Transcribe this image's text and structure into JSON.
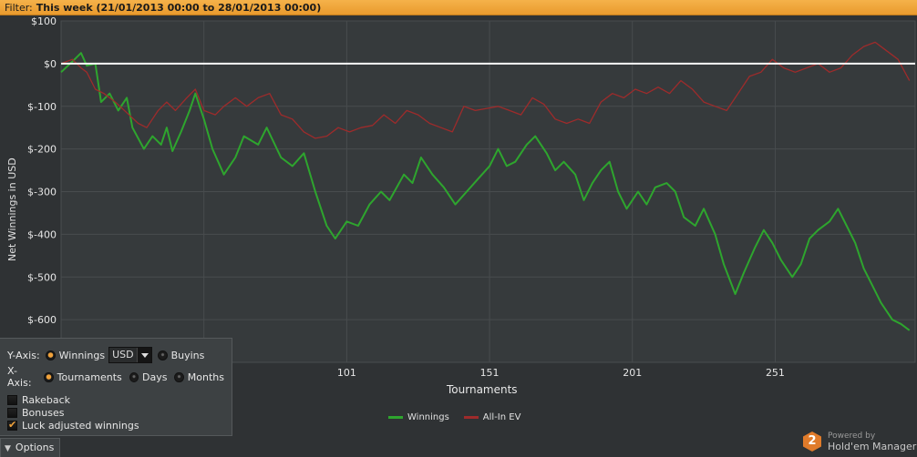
{
  "filter": {
    "label": "Filter:",
    "value": "This week (21/01/2013 00:00 to 28/01/2013 00:00)"
  },
  "colors": {
    "winnings": "#2ea52e",
    "allin_ev": "#9e2b2b",
    "accent": "#f0a23b",
    "zero_line": "#ffffff"
  },
  "options_panel": {
    "y_axis_label": "Y-Axis:",
    "y_winnings": "Winnings",
    "currency": "USD",
    "y_buyins": "Buyins",
    "x_axis_label": "X-Axis:",
    "x_tournaments": "Tournaments",
    "x_days": "Days",
    "x_months": "Months",
    "rakeback": "Rakeback",
    "bonuses": "Bonuses",
    "luck_adjusted": "Luck adjusted winnings",
    "rakeback_checked": false,
    "bonuses_checked": false,
    "luck_adjusted_checked": true
  },
  "options_tab": {
    "label": "Options",
    "icon": "chevron-down-icon"
  },
  "brand": {
    "powered_by": "Powered by",
    "name": "Hold'em Manager",
    "logo_text": "2"
  },
  "chart_data": {
    "type": "line",
    "xlabel": "Tournaments",
    "ylabel": "Net Winnings in USD",
    "xlim": [
      1,
      300
    ],
    "ylim": [
      -700,
      100
    ],
    "x_ticks": [
      "101",
      "151",
      "201",
      "251"
    ],
    "y_ticks": [
      "$100",
      "$0",
      "$-100",
      "$-200",
      "$-300",
      "$-400",
      "$-500",
      "$-600"
    ],
    "grid": true,
    "legend_position": "bottom-center",
    "series": [
      {
        "name": "Winnings",
        "key": "winnings",
        "points": [
          [
            1,
            -20
          ],
          [
            5,
            5
          ],
          [
            8,
            25
          ],
          [
            10,
            -5
          ],
          [
            13,
            0
          ],
          [
            15,
            -90
          ],
          [
            18,
            -70
          ],
          [
            21,
            -110
          ],
          [
            24,
            -80
          ],
          [
            26,
            -150
          ],
          [
            30,
            -200
          ],
          [
            33,
            -170
          ],
          [
            36,
            -190
          ],
          [
            38,
            -150
          ],
          [
            40,
            -205
          ],
          [
            43,
            -160
          ],
          [
            46,
            -110
          ],
          [
            48,
            -70
          ],
          [
            51,
            -130
          ],
          [
            54,
            -200
          ],
          [
            58,
            -260
          ],
          [
            62,
            -220
          ],
          [
            65,
            -170
          ],
          [
            70,
            -190
          ],
          [
            73,
            -150
          ],
          [
            78,
            -220
          ],
          [
            82,
            -240
          ],
          [
            86,
            -210
          ],
          [
            90,
            -300
          ],
          [
            94,
            -380
          ],
          [
            97,
            -410
          ],
          [
            101,
            -370
          ],
          [
            105,
            -380
          ],
          [
            109,
            -330
          ],
          [
            113,
            -300
          ],
          [
            116,
            -320
          ],
          [
            121,
            -260
          ],
          [
            124,
            -280
          ],
          [
            127,
            -220
          ],
          [
            131,
            -260
          ],
          [
            135,
            -290
          ],
          [
            139,
            -330
          ],
          [
            143,
            -300
          ],
          [
            147,
            -270
          ],
          [
            151,
            -240
          ],
          [
            154,
            -200
          ],
          [
            157,
            -240
          ],
          [
            160,
            -230
          ],
          [
            164,
            -190
          ],
          [
            167,
            -170
          ],
          [
            171,
            -210
          ],
          [
            174,
            -250
          ],
          [
            177,
            -230
          ],
          [
            181,
            -260
          ],
          [
            184,
            -320
          ],
          [
            187,
            -280
          ],
          [
            190,
            -250
          ],
          [
            193,
            -230
          ],
          [
            196,
            -300
          ],
          [
            199,
            -340
          ],
          [
            203,
            -300
          ],
          [
            206,
            -330
          ],
          [
            209,
            -290
          ],
          [
            213,
            -280
          ],
          [
            216,
            -300
          ],
          [
            219,
            -360
          ],
          [
            223,
            -380
          ],
          [
            226,
            -340
          ],
          [
            230,
            -400
          ],
          [
            233,
            -470
          ],
          [
            237,
            -540
          ],
          [
            240,
            -490
          ],
          [
            244,
            -430
          ],
          [
            247,
            -390
          ],
          [
            250,
            -420
          ],
          [
            253,
            -460
          ],
          [
            257,
            -500
          ],
          [
            260,
            -470
          ],
          [
            263,
            -410
          ],
          [
            266,
            -390
          ],
          [
            270,
            -370
          ],
          [
            273,
            -340
          ],
          [
            276,
            -380
          ],
          [
            279,
            -420
          ],
          [
            282,
            -480
          ],
          [
            285,
            -520
          ],
          [
            288,
            -560
          ],
          [
            292,
            -600
          ],
          [
            295,
            -610
          ],
          [
            298,
            -625
          ]
        ]
      },
      {
        "name": "All-In EV",
        "key": "allin_ev",
        "points": [
          [
            1,
            0
          ],
          [
            5,
            10
          ],
          [
            8,
            -10
          ],
          [
            10,
            -20
          ],
          [
            13,
            -60
          ],
          [
            16,
            -70
          ],
          [
            20,
            -90
          ],
          [
            24,
            -115
          ],
          [
            28,
            -140
          ],
          [
            31,
            -150
          ],
          [
            35,
            -110
          ],
          [
            38,
            -90
          ],
          [
            41,
            -110
          ],
          [
            45,
            -80
          ],
          [
            48,
            -60
          ],
          [
            51,
            -110
          ],
          [
            55,
            -120
          ],
          [
            58,
            -100
          ],
          [
            62,
            -80
          ],
          [
            66,
            -100
          ],
          [
            70,
            -80
          ],
          [
            74,
            -70
          ],
          [
            78,
            -120
          ],
          [
            82,
            -130
          ],
          [
            86,
            -160
          ],
          [
            90,
            -175
          ],
          [
            94,
            -170
          ],
          [
            98,
            -150
          ],
          [
            102,
            -160
          ],
          [
            106,
            -150
          ],
          [
            110,
            -145
          ],
          [
            114,
            -120
          ],
          [
            118,
            -140
          ],
          [
            122,
            -110
          ],
          [
            126,
            -120
          ],
          [
            130,
            -140
          ],
          [
            134,
            -150
          ],
          [
            138,
            -160
          ],
          [
            142,
            -100
          ],
          [
            146,
            -110
          ],
          [
            150,
            -105
          ],
          [
            154,
            -100
          ],
          [
            158,
            -110
          ],
          [
            162,
            -120
          ],
          [
            166,
            -80
          ],
          [
            170,
            -95
          ],
          [
            174,
            -130
          ],
          [
            178,
            -140
          ],
          [
            182,
            -130
          ],
          [
            186,
            -140
          ],
          [
            190,
            -90
          ],
          [
            194,
            -70
          ],
          [
            198,
            -80
          ],
          [
            202,
            -60
          ],
          [
            206,
            -70
          ],
          [
            210,
            -55
          ],
          [
            214,
            -70
          ],
          [
            218,
            -40
          ],
          [
            222,
            -60
          ],
          [
            226,
            -90
          ],
          [
            230,
            -100
          ],
          [
            234,
            -110
          ],
          [
            238,
            -70
          ],
          [
            242,
            -30
          ],
          [
            246,
            -20
          ],
          [
            250,
            10
          ],
          [
            254,
            -10
          ],
          [
            258,
            -20
          ],
          [
            262,
            -10
          ],
          [
            266,
            0
          ],
          [
            270,
            -20
          ],
          [
            274,
            -10
          ],
          [
            278,
            20
          ],
          [
            282,
            40
          ],
          [
            286,
            50
          ],
          [
            290,
            30
          ],
          [
            294,
            10
          ],
          [
            298,
            -40
          ]
        ]
      }
    ]
  }
}
